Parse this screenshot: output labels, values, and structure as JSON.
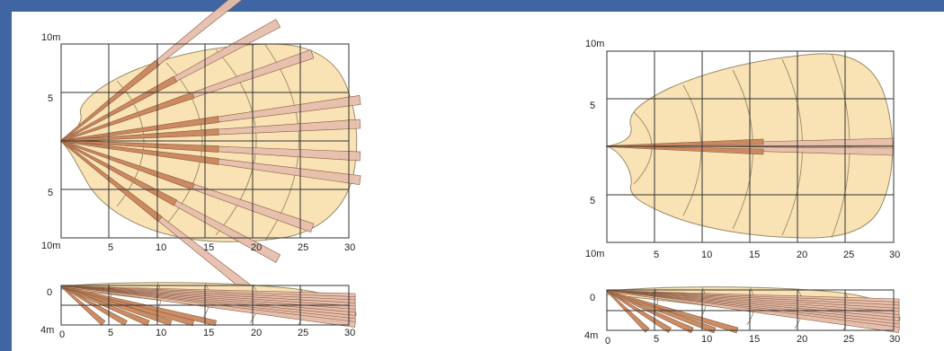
{
  "colors": {
    "frame": "#3f66a3",
    "zone_fill": "#f9e2b4",
    "zone_stroke": "#9b8a6a",
    "beam_near": "#c9875d",
    "beam_far": "#e6bfae",
    "grid": "#333333"
  },
  "wide_pattern": {
    "top_view": {
      "y_top_label": "10m",
      "y_mid_labels": [
        "5",
        "5"
      ],
      "y_bottom_label": "10m",
      "x_ticks": [
        "5",
        "10",
        "15",
        "20",
        "25",
        "30"
      ]
    },
    "side_view": {
      "y_top_label": "0",
      "y_bottom_label": "4m",
      "x_ticks": [
        "0",
        "5",
        "10",
        "15",
        "20",
        "25",
        "30"
      ]
    }
  },
  "narrow_pattern": {
    "top_view": {
      "y_top_label": "10m",
      "y_mid_labels": [
        "5",
        "5"
      ],
      "y_bottom_label": "10m",
      "x_ticks": [
        "5",
        "10",
        "15",
        "20",
        "25",
        "30"
      ]
    },
    "side_view": {
      "y_top_label": "0",
      "y_bottom_label": "4m",
      "x_ticks": [
        "0",
        "5",
        "10",
        "15",
        "20",
        "25",
        "30"
      ]
    }
  }
}
